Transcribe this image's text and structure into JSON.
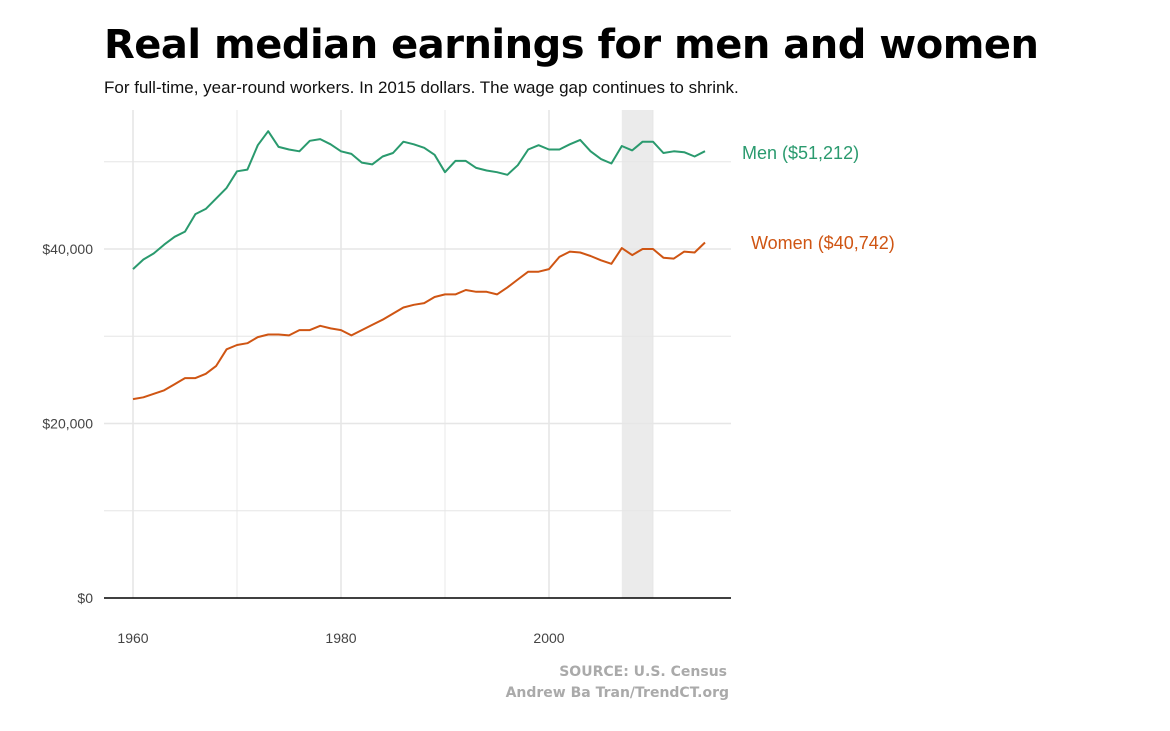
{
  "title": "Real median earnings for men and women",
  "subtitle": "For full-time, year-round workers. In 2015 dollars. The wage gap continues to shrink.",
  "source": "SOURCE: U.S. Census",
  "credit": "Andrew Ba Tran/TrendCT.org",
  "colors": {
    "men": "#2a9a6e",
    "women": "#cf5513",
    "recession": "#ebebeb",
    "grid": "#e6e6e6"
  },
  "chart_data": {
    "type": "line",
    "title": "Real median earnings for men and women",
    "xlabel": "",
    "ylabel": "",
    "xlim": [
      1959,
      2017
    ],
    "ylim": [
      0,
      56000
    ],
    "x_ticks": [
      1960,
      1980,
      2000
    ],
    "x_tick_labels": [
      "1960",
      "1980",
      "2000"
    ],
    "y_ticks": [
      0,
      20000,
      40000
    ],
    "y_tick_labels": [
      "$0",
      "$20,000",
      "$40,000"
    ],
    "highlight_range": [
      2007,
      2010
    ],
    "x": [
      1960,
      1961,
      1962,
      1963,
      1964,
      1965,
      1966,
      1967,
      1968,
      1969,
      1970,
      1971,
      1972,
      1973,
      1974,
      1975,
      1976,
      1977,
      1978,
      1979,
      1980,
      1981,
      1982,
      1983,
      1984,
      1985,
      1986,
      1987,
      1988,
      1989,
      1990,
      1991,
      1992,
      1993,
      1994,
      1995,
      1996,
      1997,
      1998,
      1999,
      2000,
      2001,
      2002,
      2003,
      2004,
      2005,
      2006,
      2007,
      2008,
      2009,
      2010,
      2011,
      2012,
      2013,
      2014,
      2015
    ],
    "series": [
      {
        "name": "Men",
        "label": "Men ($51,212)",
        "values": [
          37700,
          38800,
          39500,
          40500,
          41400,
          42000,
          44000,
          44600,
          45800,
          47000,
          48900,
          49100,
          51900,
          53500,
          51700,
          51400,
          51200,
          52400,
          52600,
          52000,
          51200,
          50900,
          49900,
          49700,
          50600,
          51000,
          52300,
          52000,
          51600,
          50800,
          48800,
          50100,
          50100,
          49300,
          49000,
          48800,
          48500,
          49600,
          51400,
          51900,
          51400,
          51400,
          52000,
          52500,
          51200,
          50300,
          49800,
          51800,
          51300,
          52300,
          52300,
          51000,
          51200,
          51100,
          50600,
          51212
        ]
      },
      {
        "name": "Women",
        "label": "Women ($40,742)",
        "values": [
          22800,
          23000,
          23400,
          23800,
          24500,
          25200,
          25200,
          25700,
          26600,
          28500,
          29000,
          29200,
          29900,
          30200,
          30200,
          30100,
          30700,
          30700,
          31200,
          30900,
          30700,
          30100,
          30700,
          31300,
          31900,
          32600,
          33300,
          33600,
          33800,
          34500,
          34800,
          34800,
          35300,
          35100,
          35100,
          34800,
          35600,
          36500,
          37400,
          37400,
          37700,
          39100,
          39700,
          39600,
          39200,
          38700,
          38300,
          40100,
          39300,
          40000,
          40000,
          39000,
          38900,
          39700,
          39600,
          40742
        ]
      }
    ]
  }
}
